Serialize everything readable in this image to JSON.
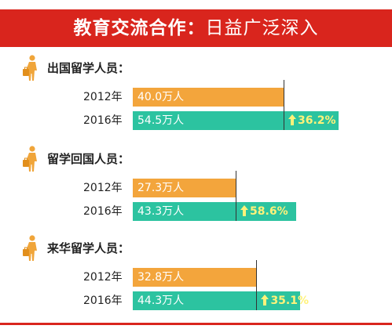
{
  "header": {
    "title_bold": "教育交流合作：",
    "title_rest": "日益广泛深入"
  },
  "colors": {
    "header_red": "#d9251d",
    "bar_2012": "#f3a53c",
    "bar_2016": "#2cc3a0",
    "growth_text": "#fff27a"
  },
  "chart_data": [
    {
      "type": "bar",
      "title": "出国留学人员：",
      "categories": [
        "2012年",
        "2016年"
      ],
      "values": [
        40.0,
        54.5
      ],
      "value_labels": [
        "40.0万人",
        "54.5万人"
      ],
      "unit": "万人",
      "growth": "36.2%"
    },
    {
      "type": "bar",
      "title": "留学回国人员：",
      "categories": [
        "2012年",
        "2016年"
      ],
      "values": [
        27.3,
        43.3
      ],
      "value_labels": [
        "27.3万人",
        "43.3万人"
      ],
      "unit": "万人",
      "growth": "58.6%"
    },
    {
      "type": "bar",
      "title": "来华留学人员：",
      "categories": [
        "2012年",
        "2016年"
      ],
      "values": [
        32.8,
        44.3
      ],
      "value_labels": [
        "32.8万人",
        "44.3万人"
      ],
      "unit": "万人",
      "growth": "35.1%"
    }
  ]
}
